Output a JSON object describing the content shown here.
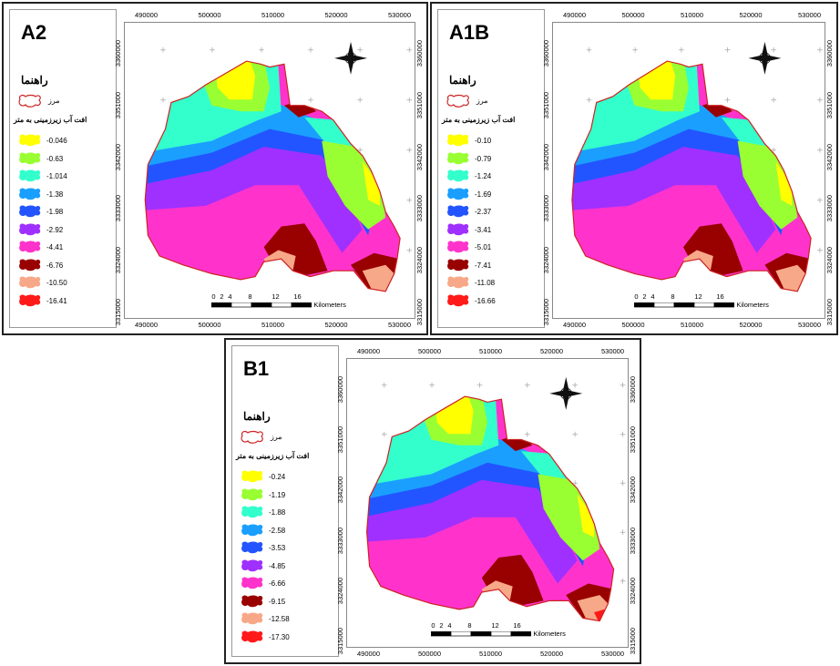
{
  "colors": {
    "yellow": "#ffff00",
    "light_green": "#99ff33",
    "teal": "#33ffcc",
    "light_blue": "#1a9fff",
    "blue": "#2255ff",
    "purple": "#a030ff",
    "magenta": "#ff33cc",
    "dark_red": "#990000",
    "salmon": "#f7a888",
    "red": "#ff1a1a",
    "border": "#cc2222"
  },
  "legend_common": {
    "heading": "راهنما",
    "border_label": "مرز",
    "subtitle": "افت آب زیرزمینی به متر"
  },
  "scale_bar": {
    "ticks": [
      "0",
      "2",
      "4",
      "8",
      "12",
      "16"
    ],
    "unit": "Kilometers"
  },
  "x_ticks": [
    "490000",
    "500000",
    "510000",
    "520000",
    "530000"
  ],
  "y_ticks": [
    "3360000",
    "3351000",
    "3342000",
    "3333000",
    "3324000",
    "3315000"
  ],
  "panels": [
    {
      "title": "A2",
      "values": [
        "-0.046",
        "-0.63",
        "-1.014",
        "-1.38",
        "-1.98",
        "-2.92",
        "-4.41",
        "-6.76",
        "-10.50",
        "-16.41"
      ]
    },
    {
      "title": "A1B",
      "values": [
        "-0.10",
        "-0.79",
        "-1.24",
        "-1.69",
        "-2.37",
        "-3.41",
        "-5.01",
        "-7.41",
        "-11.08",
        "-16.66"
      ]
    },
    {
      "title": "B1",
      "values": [
        "-0.24",
        "-1.19",
        "-1.88",
        "-2.58",
        "-3.53",
        "-4.85",
        "-6.66",
        "-9.15",
        "-12.58",
        "-17.30"
      ]
    }
  ]
}
